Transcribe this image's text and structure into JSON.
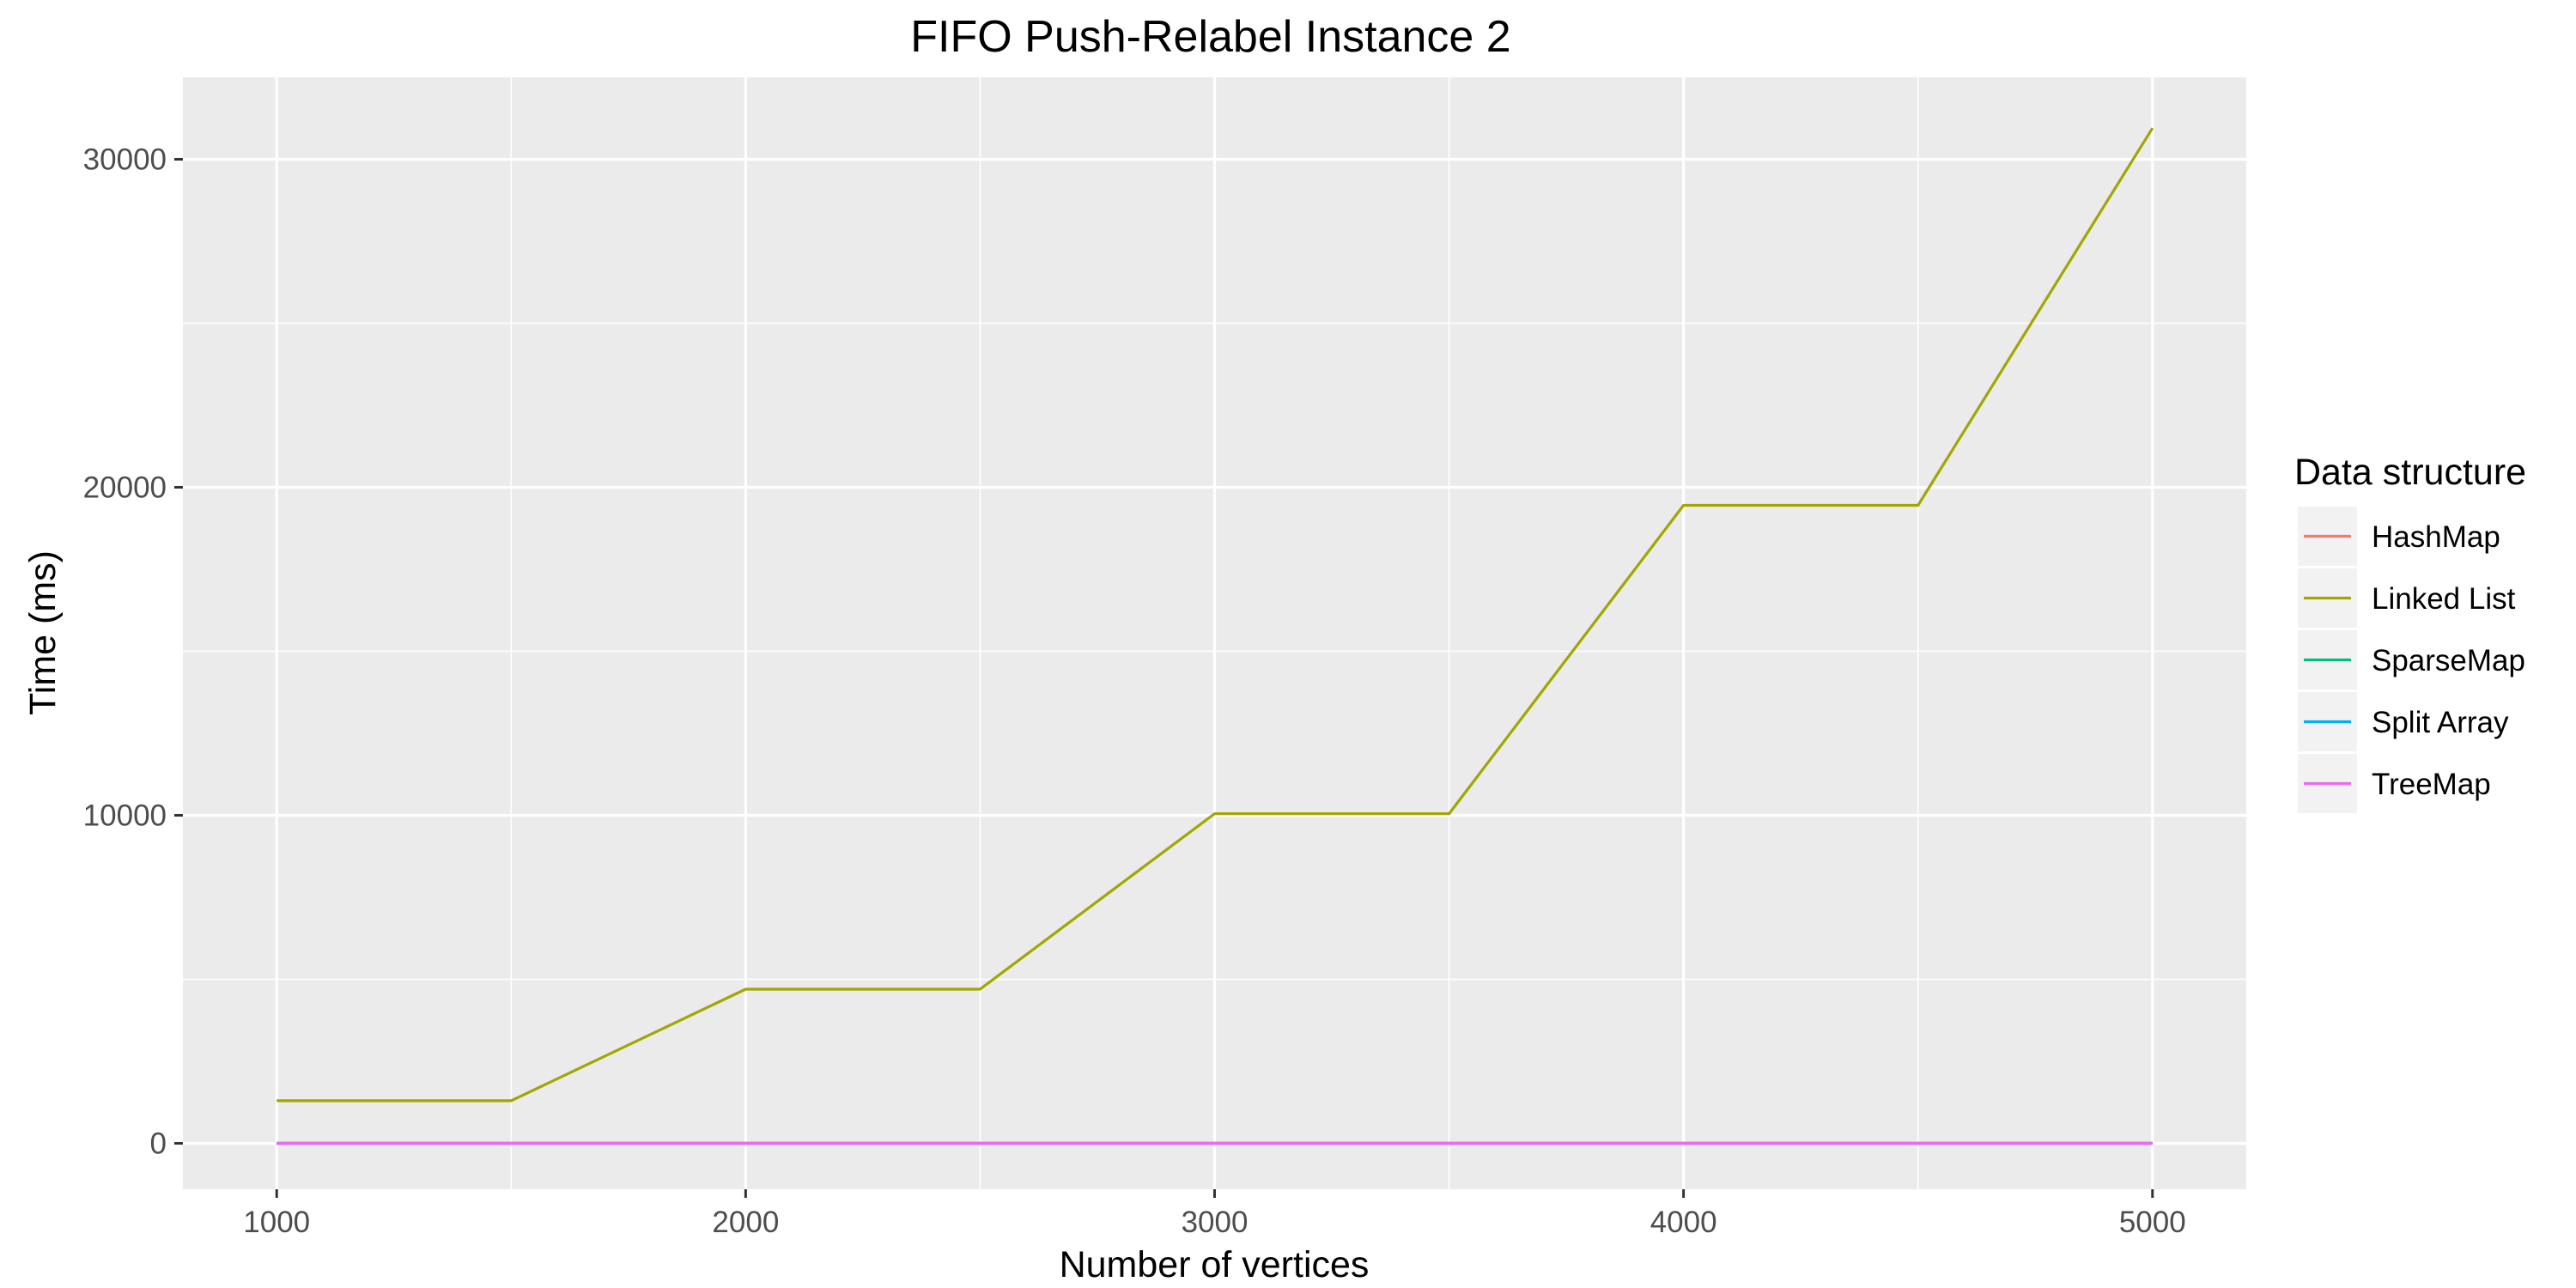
{
  "chart_data": {
    "type": "line",
    "title": "FIFO Push-Relabel Instance 2",
    "xlabel": "Number of vertices",
    "ylabel": "Time (ms)",
    "x": [
      1000,
      1500,
      2000,
      2500,
      3000,
      3500,
      4000,
      4500,
      5000
    ],
    "xlim": [
      800,
      5200
    ],
    "ylim": [
      -1400,
      32500
    ],
    "x_ticks": [
      1000,
      2000,
      3000,
      4000,
      5000
    ],
    "x_minor_ticks": [
      1500,
      2500,
      3500,
      4500
    ],
    "y_ticks": [
      0,
      10000,
      20000,
      30000
    ],
    "y_minor_ticks": [
      5000,
      15000,
      25000
    ],
    "grid": true,
    "legend": {
      "title": "Data structure",
      "placement": "right"
    },
    "series": [
      {
        "name": "HashMap",
        "color": "#F8766D",
        "values": [
          0,
          0,
          0,
          0,
          0,
          0,
          0,
          0,
          0
        ]
      },
      {
        "name": "Linked List",
        "color": "#A3A500",
        "values": [
          1300,
          1300,
          4700,
          4700,
          10050,
          10050,
          19450,
          19450,
          30950
        ]
      },
      {
        "name": "SparseMap",
        "color": "#00BF7D",
        "values": [
          0,
          0,
          0,
          0,
          0,
          0,
          0,
          0,
          0
        ]
      },
      {
        "name": "Split Array",
        "color": "#00B0F6",
        "values": [
          0,
          0,
          0,
          0,
          0,
          0,
          0,
          0,
          0
        ]
      },
      {
        "name": "TreeMap",
        "color": "#E76BF3",
        "values": [
          0,
          0,
          0,
          0,
          0,
          0,
          0,
          0,
          0
        ]
      }
    ]
  }
}
